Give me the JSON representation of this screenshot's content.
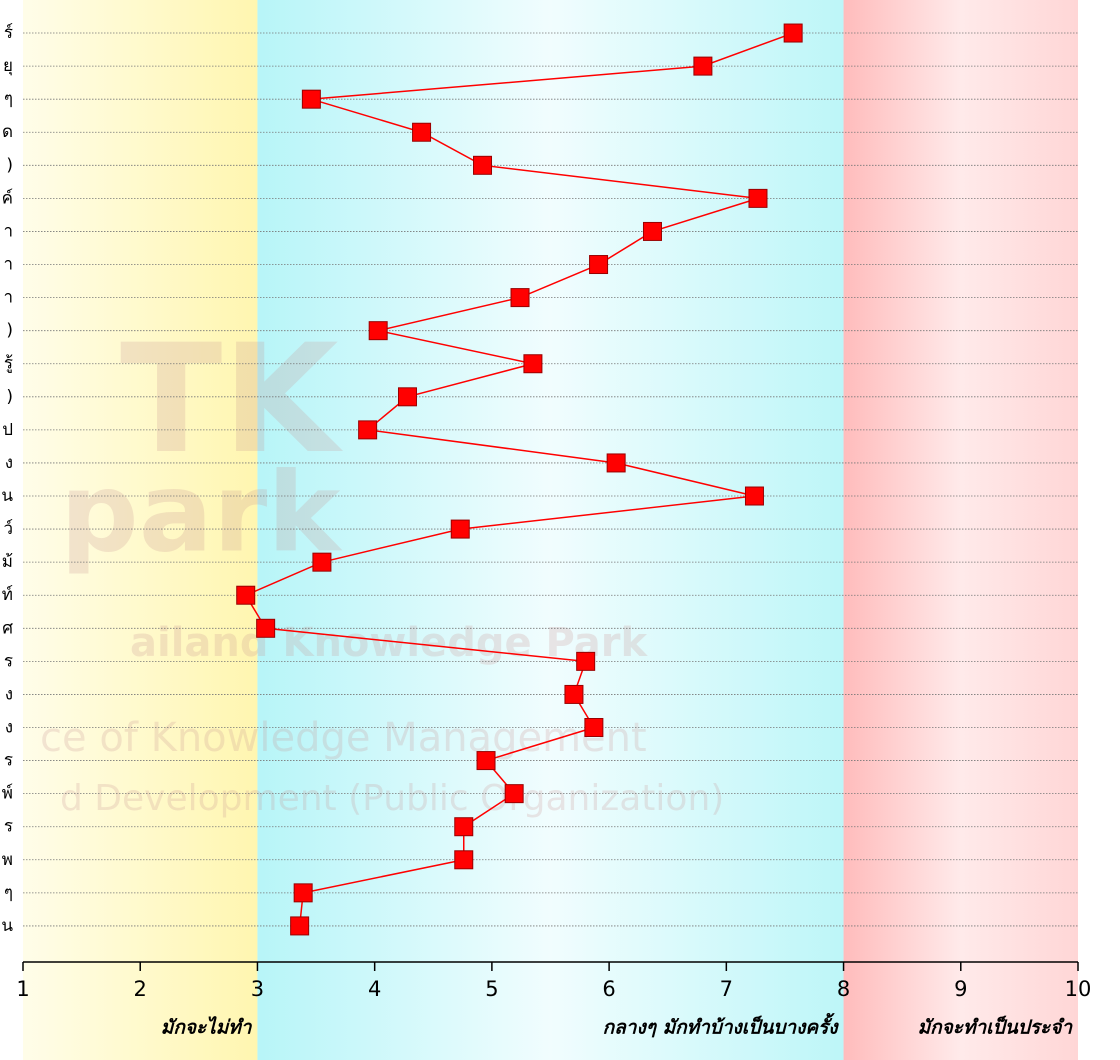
{
  "chart_data": {
    "type": "line",
    "categories": [
      "ร์",
      "ยุ",
      "ๆ",
      "ด",
      ")",
      "ค์",
      "า",
      "า",
      "า",
      ")",
      "รู้",
      ")",
      "ป",
      "ง",
      "น",
      "ว์",
      "ม้",
      "ท์",
      "ศ",
      "ร",
      "ง",
      "ง",
      "ร",
      "พ์",
      "ร",
      "พ",
      "ๆ",
      "น"
    ],
    "series": [
      {
        "color": "#ff0000",
        "values": [
          7.57,
          6.8,
          3.46,
          4.4,
          4.92,
          7.27,
          6.37,
          5.91,
          5.24,
          4.03,
          5.35,
          4.28,
          3.94,
          6.06,
          7.24,
          4.73,
          3.55,
          2.9,
          3.07,
          5.8,
          5.7,
          5.87,
          4.95,
          5.19,
          4.76,
          4.76,
          3.39,
          3.36
        ]
      }
    ],
    "xlim": [
      1,
      10
    ],
    "xticks": [
      1,
      2,
      3,
      4,
      5,
      6,
      7,
      8,
      9,
      10
    ],
    "grid": true,
    "zones": [
      {
        "from": 1,
        "to": 3,
        "label": "มักจะไม่ทำ",
        "colors": [
          "#fffde9",
          "#fff6b0"
        ]
      },
      {
        "from": 3,
        "to": 8,
        "label": "กลางๆ มักทำบ้างเป็นบางครั้ง",
        "colors": [
          "#b7f5f8",
          "#f1fdfe",
          "#bdf6f8"
        ]
      },
      {
        "from": 8,
        "to": 10,
        "label": "มักจะทำเป็นประจำ",
        "colors": [
          "#ffbcbc",
          "#ffeaea",
          "#ffd6d6"
        ]
      }
    ],
    "watermark": [
      "TK",
      "park",
      "ailand Knowledge Park",
      "ce of Knowledge Management",
      "d Development (Public Organization)"
    ]
  }
}
